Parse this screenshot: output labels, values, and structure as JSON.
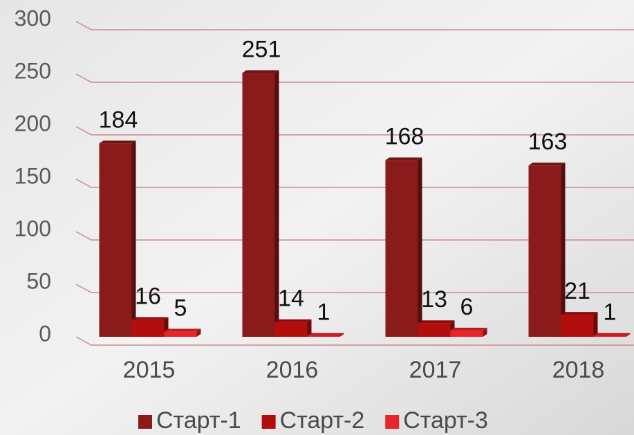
{
  "chart_data": {
    "type": "bar3d",
    "categories": [
      "2015",
      "2016",
      "2017",
      "2018"
    ],
    "series": [
      {
        "name": "Старт-1",
        "color": "#8b1a1a",
        "values": [
          184,
          251,
          168,
          163
        ]
      },
      {
        "name": "Старт-2",
        "color": "#b30e0e",
        "values": [
          16,
          14,
          13,
          21
        ]
      },
      {
        "name": "Старт-3",
        "color": "#e8262a",
        "values": [
          5,
          1,
          6,
          1
        ]
      }
    ],
    "ylim": [
      0,
      300
    ],
    "yticks": [
      0,
      50,
      100,
      150,
      200,
      250,
      300
    ],
    "grid": true,
    "legend": "bottom"
  }
}
